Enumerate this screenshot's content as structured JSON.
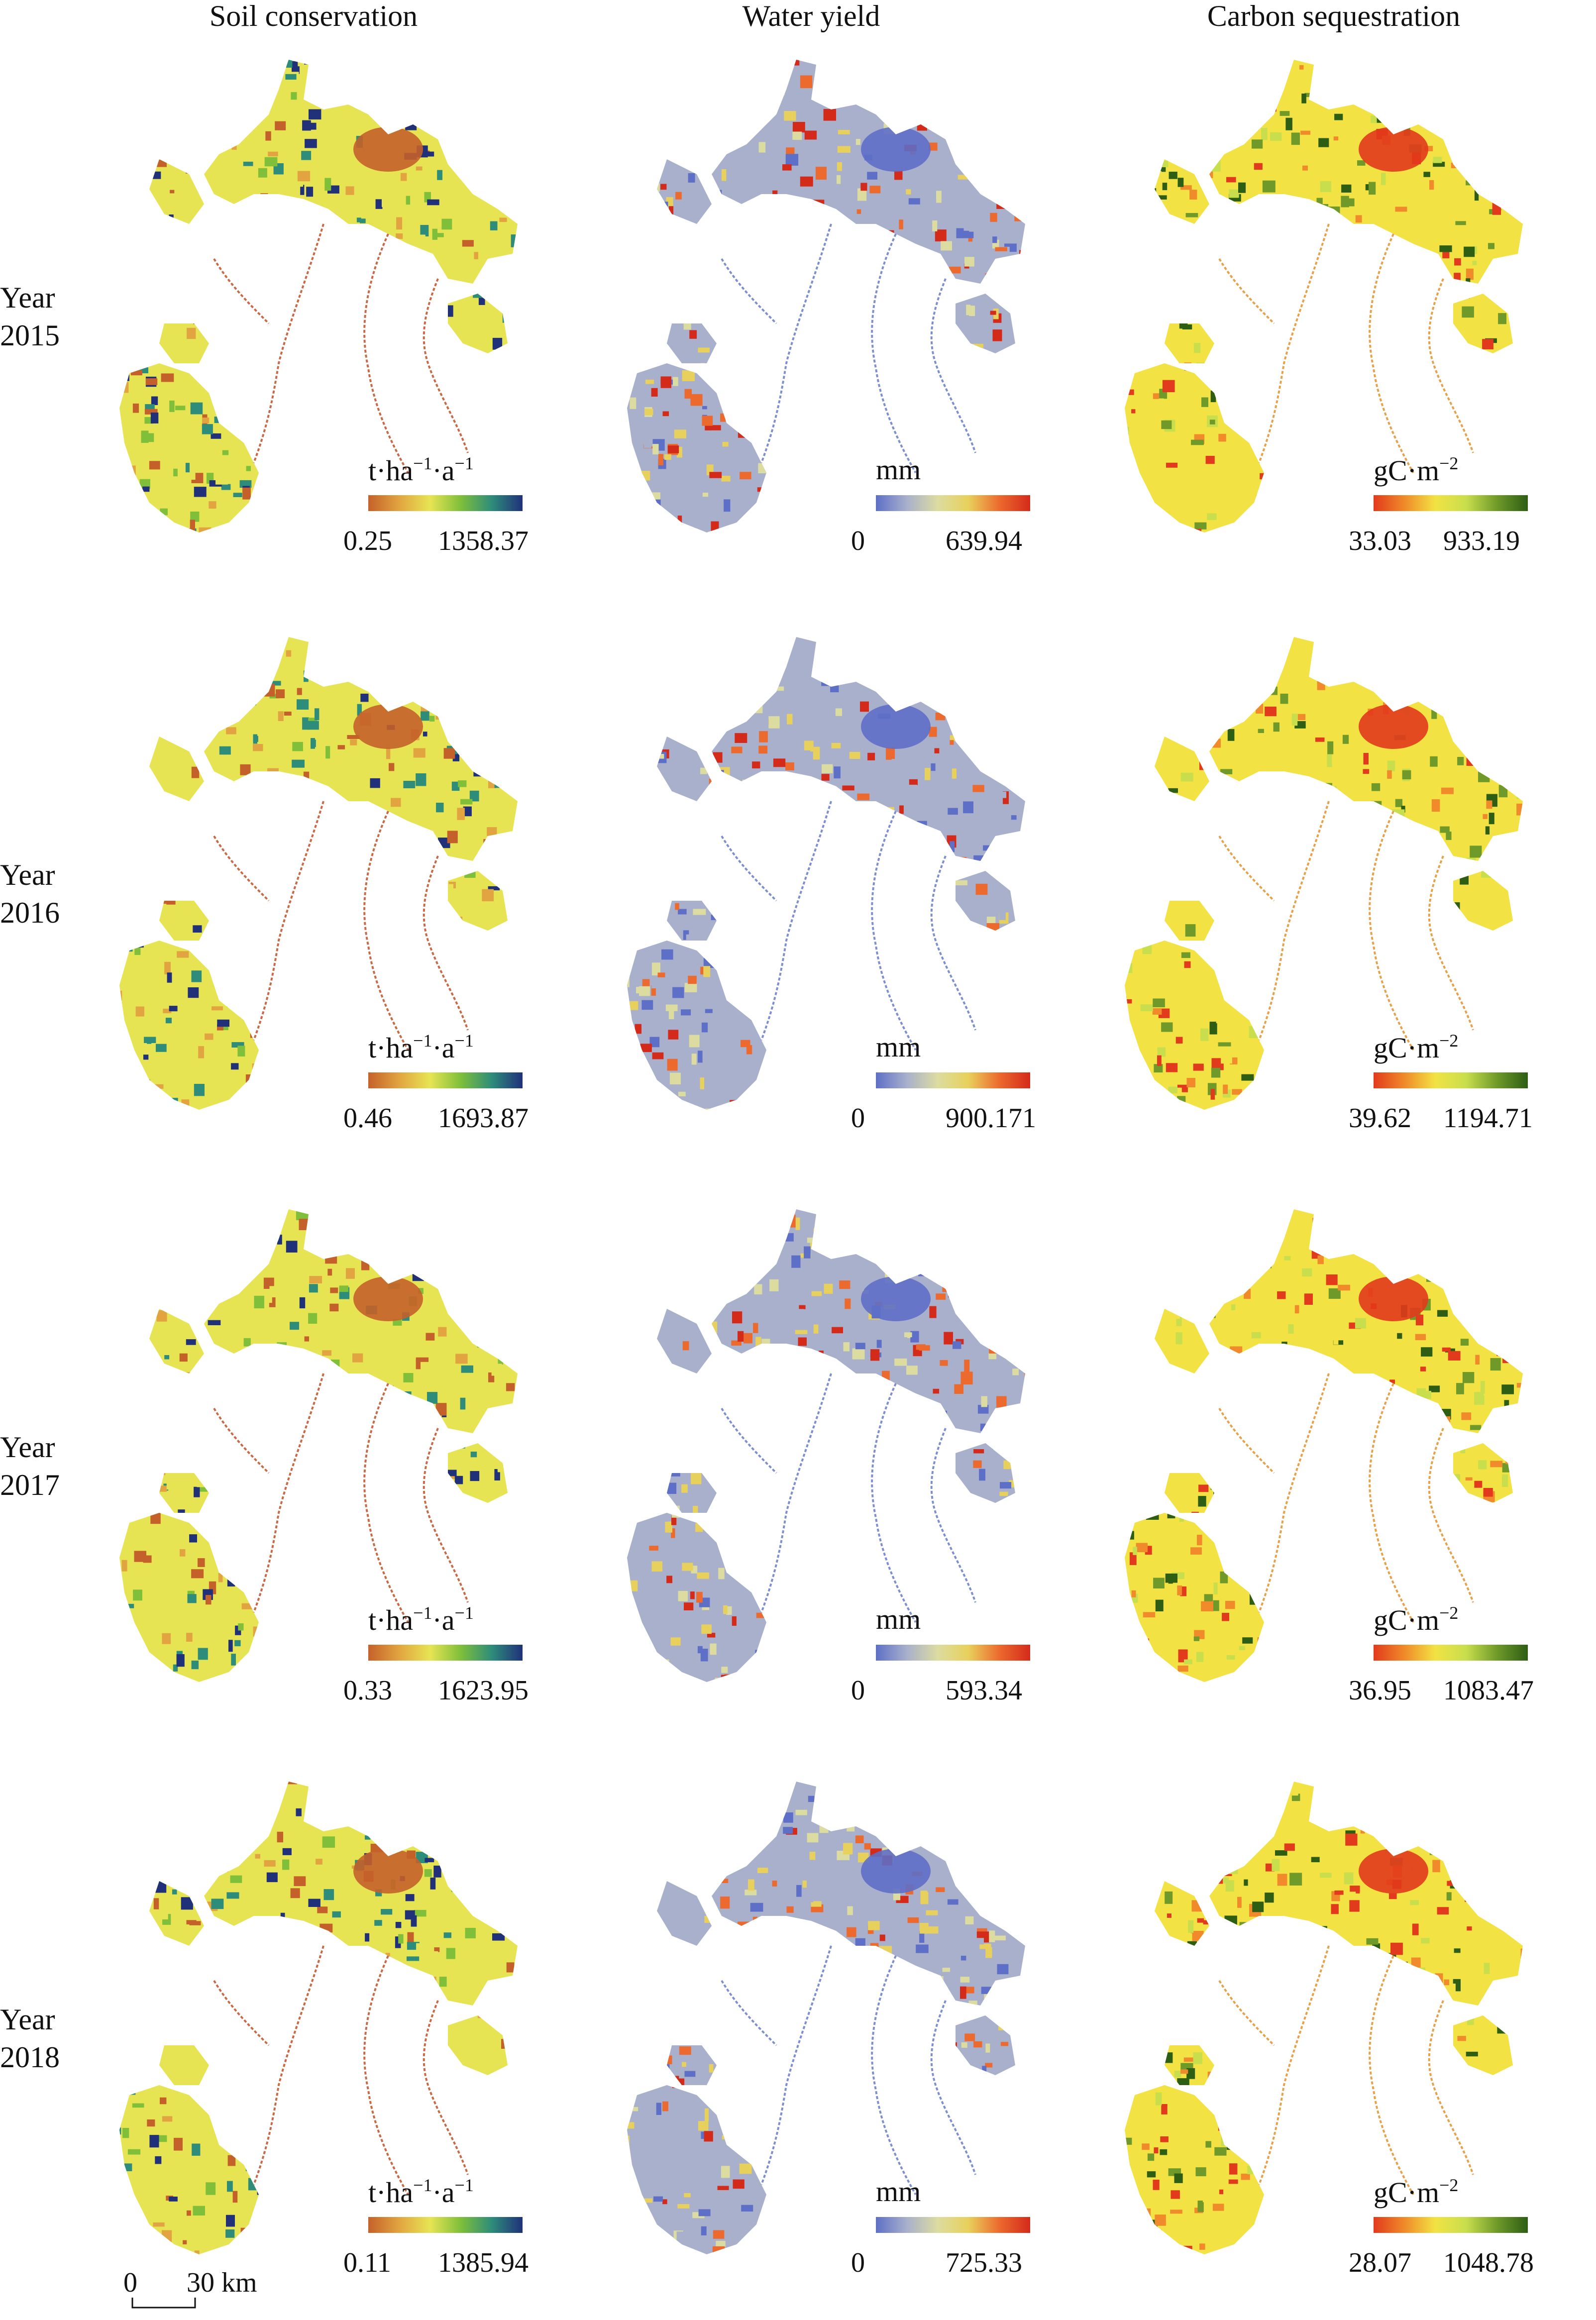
{
  "columns": [
    {
      "title": "Soil conservation",
      "unit_base": [
        "t·ha",
        "·a"
      ],
      "unit_sup": [
        "−1",
        "−1"
      ],
      "ramp": [
        "#c4612a",
        "#e2a441",
        "#e7e454",
        "#7fbf3a",
        "#2e8c7a",
        "#20317a"
      ]
    },
    {
      "title": "Water yield",
      "unit_base": [
        "mm"
      ],
      "unit_sup": [
        ""
      ],
      "ramp": [
        "#5e6fc7",
        "#a8b0cc",
        "#dcdca0",
        "#e8d05c",
        "#ec6a2e",
        "#d42a1a"
      ]
    },
    {
      "title": "Carbon sequestration",
      "unit_base": [
        "gC·m"
      ],
      "unit_sup": [
        "−2"
      ],
      "ramp": [
        "#e23a1c",
        "#f08a2a",
        "#f2e244",
        "#c9de4d",
        "#6f9a2a",
        "#2d5e14"
      ]
    }
  ],
  "rows": [
    {
      "label": [
        "Year",
        "2015"
      ],
      "ranges": [
        [
          "0.25",
          "1358.37"
        ],
        [
          "0",
          "639.94"
        ],
        [
          "33.03",
          "933.19"
        ]
      ]
    },
    {
      "label": [
        "Year",
        "2016"
      ],
      "ranges": [
        [
          "0.46",
          "1693.87"
        ],
        [
          "0",
          "900.171"
        ],
        [
          "39.62",
          "1194.71"
        ]
      ]
    },
    {
      "label": [
        "Year",
        "2017"
      ],
      "ranges": [
        [
          "0.33",
          "1623.95"
        ],
        [
          "0",
          "593.34"
        ],
        [
          "36.95",
          "1083.47"
        ]
      ]
    },
    {
      "label": [
        "Year",
        "2018"
      ],
      "ranges": [
        [
          "0.11",
          "1385.94"
        ],
        [
          "0",
          "725.33"
        ],
        [
          "28.07",
          "1048.78"
        ]
      ]
    }
  ],
  "scale_bar": {
    "start": "0",
    "end": "30 km"
  }
}
